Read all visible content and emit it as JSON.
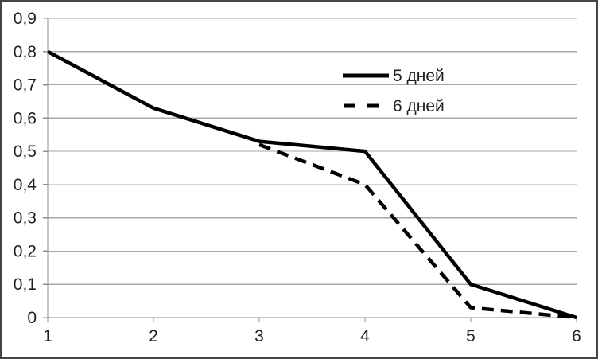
{
  "chart_data": {
    "type": "line",
    "x": [
      1,
      2,
      3,
      4,
      5,
      6
    ],
    "x_tick_labels": [
      "1",
      "2",
      "3",
      "4",
      "5",
      "6"
    ],
    "y_tick_labels": [
      "0",
      "0,1",
      "0,2",
      "0,3",
      "0,4",
      "0,5",
      "0,6",
      "0,7",
      "0,8",
      "0,9"
    ],
    "ylim": [
      0,
      0.9
    ],
    "y_step": 0.1,
    "grid": true,
    "legend_position": "inside-top-center",
    "title": "",
    "xlabel": "",
    "ylabel": "",
    "series": [
      {
        "name": "5 дней",
        "style": "solid",
        "values": [
          0.8,
          0.63,
          0.53,
          0.5,
          0.1,
          0
        ]
      },
      {
        "name": "6 дней",
        "style": "dashed",
        "values": [
          null,
          null,
          0.52,
          0.4,
          0.03,
          0
        ]
      }
    ]
  },
  "legend": {
    "items": [
      {
        "label": "5 дней",
        "swatch": "solid-line"
      },
      {
        "label": "6 дней",
        "swatch": "dashed-line"
      }
    ]
  },
  "colors": {
    "series_line": "#000000",
    "gridline": "#a6a6a6",
    "axis": "#8e8e8e",
    "text": "#1f1f1f",
    "background": "#ffffff",
    "border": "#454545"
  }
}
